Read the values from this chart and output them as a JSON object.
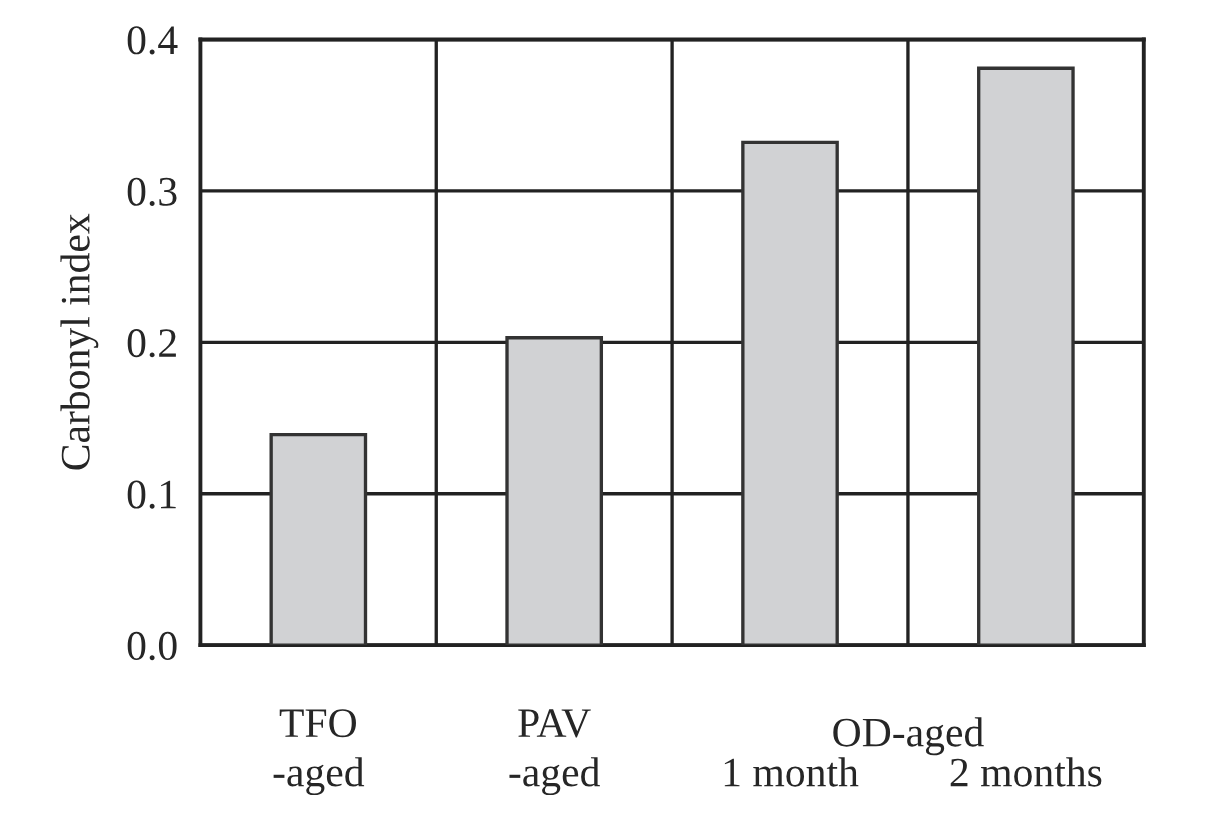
{
  "chart_data": {
    "type": "bar",
    "ylabel": "Carbonyl index",
    "categories": [
      "TFO\n-aged",
      "PAV\n-aged",
      "1 month",
      "2 months"
    ],
    "values": [
      0.139,
      0.203,
      0.332,
      0.381
    ],
    "color": "#d1d2d4",
    "ylim": [
      0,
      0.4
    ],
    "yticks": [
      {
        "value": 0,
        "label": "0.0"
      },
      0.1,
      0.2,
      0.3,
      0.4
    ],
    "grid": true,
    "legend": false,
    "annotations": [
      "OD-aged"
    ]
  }
}
